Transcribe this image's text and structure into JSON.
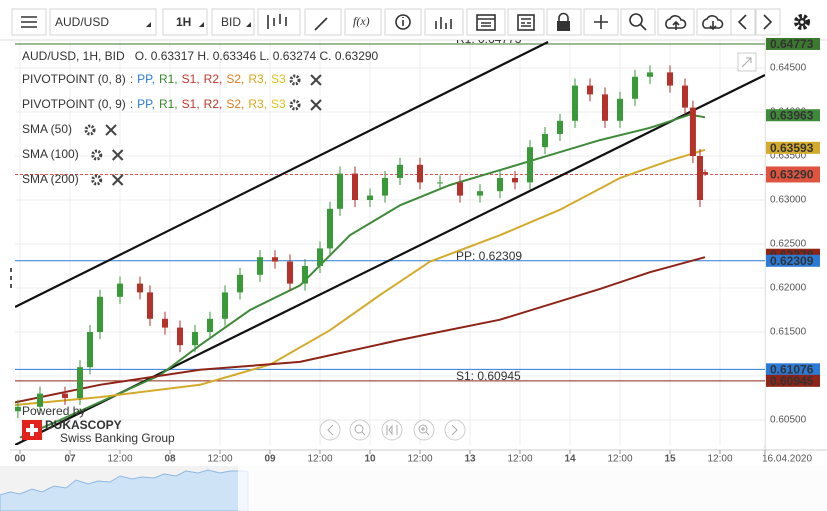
{
  "toolbar": {
    "symbol": "AUD/USD",
    "timeframe": "1H",
    "side": "BID",
    "function": "f(x)"
  },
  "legend": {
    "ohlc": "AUD/USD, 1H, BID   O. 0.63317 H. 0.63346 L. 0.63274 C. 0.63290",
    "pivots": [
      {
        "name": "PIVOTPOINT (0, 8)",
        "items": [
          {
            "text": ":",
            "color": "#555555"
          },
          {
            "text": "PP,",
            "color": "#2b7bd6"
          },
          {
            "text": "R1,",
            "color": "#3b8a2e"
          },
          {
            "text": "S1,",
            "color": "#c0392b"
          },
          {
            "text": "R2,",
            "color": "#c0392b"
          },
          {
            "text": "S2,",
            "color": "#e07b1a"
          },
          {
            "text": "R3,",
            "color": "#e0a81a"
          },
          {
            "text": "S3",
            "color": "#e0c01a"
          }
        ]
      },
      {
        "name": "PIVOTPOINT (0, 9)",
        "items": [
          {
            "text": ":",
            "color": "#555555"
          },
          {
            "text": "PP,",
            "color": "#2b7bd6"
          },
          {
            "text": "R1,",
            "color": "#3b8a2e"
          },
          {
            "text": "S1,",
            "color": "#c0392b"
          },
          {
            "text": "R2,",
            "color": "#c0392b"
          },
          {
            "text": "S2,",
            "color": "#e07b1a"
          },
          {
            "text": "R3,",
            "color": "#e0a81a"
          },
          {
            "text": "S3",
            "color": "#e0c01a"
          }
        ]
      }
    ]
  },
  "branding": {
    "powered": "Powered by",
    "name": "DUKASCOPY",
    "tagline": "Swiss Banking Group"
  },
  "chart_data": {
    "type": "candlestick",
    "x": [
      -12.5,
      -7.2,
      -1.2,
      2.4,
      4.8,
      7.2,
      12,
      16.8,
      19.2,
      22.8,
      26.4,
      30,
      33.6,
      37.2,
      40.8,
      45.6,
      49.2,
      52.8,
      56.4,
      60,
      62.4,
      64.8,
      68.4,
      72,
      75.6,
      79.2,
      84,
      88.8,
      93.6,
      98.4,
      103.2,
      106.8,
      110.4,
      114,
      117.6,
      121.2,
      124.8,
      128.4,
      132,
      135.6,
      139.2,
      144,
      147.6,
      149.5,
      151.2,
      152.4
    ],
    "open": [
      0.606,
      0.6065,
      0.608,
      0.6075,
      0.611,
      0.615,
      0.619,
      0.6205,
      0.6195,
      0.6165,
      0.6155,
      0.6135,
      0.615,
      0.6165,
      0.6195,
      0.6215,
      0.6235,
      0.623,
      0.6205,
      0.6225,
      0.6245,
      0.629,
      0.633,
      0.63,
      0.6305,
      0.6325,
      0.634,
      0.632,
      0.632,
      0.6305,
      0.631,
      0.6325,
      0.632,
      0.636,
      0.6375,
      0.639,
      0.643,
      0.642,
      0.639,
      0.6415,
      0.644,
      0.6445,
      0.643,
      0.6405,
      0.635,
      0.63317
    ],
    "high": [
      0.6073,
      0.6088,
      0.6088,
      0.6118,
      0.6158,
      0.6198,
      0.6213,
      0.6213,
      0.6203,
      0.6173,
      0.6163,
      0.6158,
      0.6173,
      0.6203,
      0.6223,
      0.6243,
      0.6243,
      0.6238,
      0.6233,
      0.6253,
      0.6298,
      0.6338,
      0.6338,
      0.6313,
      0.6333,
      0.6348,
      0.6348,
      0.6328,
      0.6328,
      0.6318,
      0.6333,
      0.6333,
      0.6368,
      0.6383,
      0.6398,
      0.6438,
      0.6438,
      0.6428,
      0.6423,
      0.6448,
      0.6453,
      0.6453,
      0.6438,
      0.6413,
      0.6358,
      0.63346
    ],
    "low": [
      0.6052,
      0.6057,
      0.6067,
      0.6067,
      0.6102,
      0.6142,
      0.6182,
      0.6187,
      0.6157,
      0.6147,
      0.6127,
      0.6127,
      0.6142,
      0.6157,
      0.6187,
      0.6207,
      0.6222,
      0.6197,
      0.6197,
      0.6217,
      0.6237,
      0.6282,
      0.6292,
      0.6292,
      0.6297,
      0.6317,
      0.6312,
      0.6312,
      0.6297,
      0.6297,
      0.6302,
      0.6312,
      0.6312,
      0.6352,
      0.6367,
      0.6382,
      0.6412,
      0.6382,
      0.6382,
      0.6407,
      0.6432,
      0.6422,
      0.6397,
      0.6342,
      0.6292,
      0.63274
    ],
    "close": [
      0.6065,
      0.608,
      0.6075,
      0.611,
      0.615,
      0.619,
      0.6205,
      0.6195,
      0.6165,
      0.6155,
      0.6135,
      0.615,
      0.6165,
      0.6195,
      0.6215,
      0.6235,
      0.623,
      0.6205,
      0.6225,
      0.6245,
      0.629,
      0.633,
      0.63,
      0.6305,
      0.6325,
      0.634,
      0.632,
      0.632,
      0.6305,
      0.631,
      0.6325,
      0.632,
      0.636,
      0.6375,
      0.639,
      0.643,
      0.642,
      0.639,
      0.6415,
      0.644,
      0.6445,
      0.643,
      0.6405,
      0.635,
      0.63,
      0.6329
    ],
    "up_color": "#3a9a3a",
    "down_color": "#b5322a",
    "overlays": [
      {
        "name": "SMA (50)",
        "color": "#3f8a3a",
        "x": [
          -12,
          -2.4,
          21.6,
          31.2,
          43.2,
          55.2,
          67.2,
          79.2,
          91.2,
          103.2,
          115.2,
          127.2,
          139.2,
          148.8,
          152.4
        ],
        "values": [
          0.603,
          0.605,
          0.6101,
          0.6135,
          0.6175,
          0.6203,
          0.626,
          0.6294,
          0.6317,
          0.6334,
          0.6351,
          0.6368,
          0.6382,
          0.6397,
          0.6394
        ]
      },
      {
        "name": "SMA (100)",
        "color": "#d4aa2a",
        "x": [
          -13.2,
          7.2,
          31.2,
          48,
          62.4,
          74.4,
          86.4,
          103.2,
          117.6,
          132,
          144,
          152.4
        ],
        "values": [
          0.6067,
          0.6076,
          0.609,
          0.6113,
          0.6152,
          0.6192,
          0.623,
          0.626,
          0.6289,
          0.6325,
          0.6345,
          0.6357
        ]
      },
      {
        "name": "SMA (200)",
        "color": "#8e2418",
        "x": [
          -13.2,
          7.2,
          31.2,
          55.2,
          79.2,
          103.2,
          127.2,
          139.2,
          152.4
        ],
        "values": [
          0.607,
          0.609,
          0.6107,
          0.6116,
          0.6141,
          0.6164,
          0.6199,
          0.6218,
          0.6235
        ]
      }
    ],
    "hlines": [
      {
        "value": 0.64773,
        "color": "#3b7a2e",
        "text": "R1: 0.64773"
      },
      {
        "value": 0.62309,
        "color": "#2b7bd6",
        "text": "PP: 0.62309"
      },
      {
        "value": 0.61076,
        "color": "#2b7bd6"
      },
      {
        "value": 0.60945,
        "color": "#8e2418",
        "text": "S1: 0.60945"
      },
      {
        "value": 0.6329,
        "color": "#d9534f",
        "dashed": true
      }
    ],
    "tags": [
      {
        "value": 0.64773,
        "label": "0.64773",
        "color": "#3b7a2e"
      },
      {
        "value": 0.63963,
        "label": "0.63963",
        "color": "#3f8a3a"
      },
      {
        "value": 0.63593,
        "label": "0.63593",
        "color": "#d4aa2a"
      },
      {
        "value": 0.62378,
        "label": "0.62378",
        "color": "#8e2418"
      },
      {
        "value": 0.62309,
        "label": "0.62309",
        "color": "#2b7bd6"
      },
      {
        "value": 0.61076,
        "label": "0.61076",
        "color": "#2b7bd6"
      },
      {
        "value": 0.60945,
        "label": "0.60945",
        "color": "#8e2418"
      },
      {
        "value": 0.6329,
        "label": "0.63290",
        "color": "#e0533f",
        "current": true
      }
    ],
    "xlim": [
      -13.2,
      166.8
    ],
    "ylim": [
      0.60216,
      0.64818
    ],
    "xticks": [
      {
        "value": -12,
        "label": "00"
      },
      {
        "value": 0,
        "label": "07"
      },
      {
        "value": 12,
        "label": "12:00"
      },
      {
        "value": 24,
        "label": "08"
      },
      {
        "value": 36,
        "label": "12:00"
      },
      {
        "value": 48,
        "label": "09"
      },
      {
        "value": 60,
        "label": "12:00"
      },
      {
        "value": 72,
        "label": "10"
      },
      {
        "value": 84,
        "label": "12:00"
      },
      {
        "value": 96,
        "label": "13"
      },
      {
        "value": 108,
        "label": "12:00"
      },
      {
        "value": 120,
        "label": "14"
      },
      {
        "value": 132,
        "label": "12:00"
      },
      {
        "value": 144,
        "label": "15"
      },
      {
        "value": 156,
        "label": "12:00"
      },
      {
        "value": 166.8,
        "label": "16.04.2020"
      }
    ],
    "yticks": [
      {
        "value": 0.645,
        "label": "0.64500"
      },
      {
        "value": 0.64,
        "label": "0.64000"
      },
      {
        "value": 0.635,
        "label": "0.63500"
      },
      {
        "value": 0.63,
        "label": "0.63000"
      },
      {
        "value": 0.625,
        "label": "0.62500"
      },
      {
        "value": 0.62,
        "label": "0.62000"
      },
      {
        "value": 0.615,
        "label": "0.61500"
      },
      {
        "value": 0.61,
        "label": "0.61000"
      },
      {
        "value": 0.605,
        "label": "0.60500"
      }
    ],
    "grid": true
  }
}
